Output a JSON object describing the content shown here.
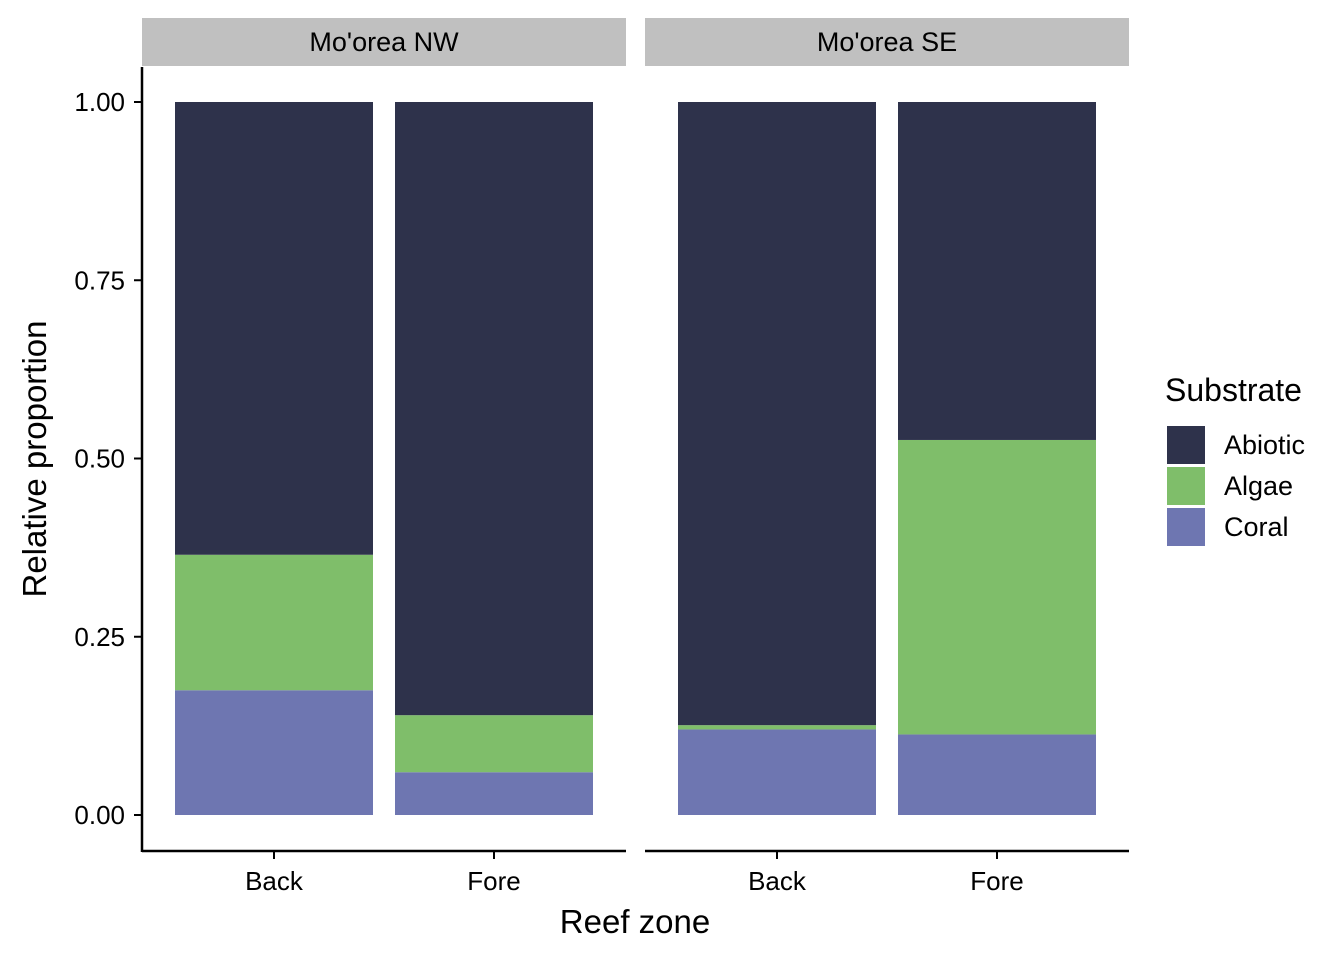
{
  "chart_data": {
    "type": "bar",
    "stacked": true,
    "facet_variable": "site",
    "facets": [
      {
        "label": "Mo'orea NW",
        "categories": [
          "Back",
          "Fore"
        ],
        "series": [
          {
            "name": "Coral",
            "values": [
              0.175,
              0.06
            ]
          },
          {
            "name": "Algae",
            "values": [
              0.19,
              0.08
            ]
          },
          {
            "name": "Abiotic",
            "values": [
              0.635,
              0.86
            ]
          }
        ]
      },
      {
        "label": "Mo'orea SE",
        "categories": [
          "Back",
          "Fore"
        ],
        "series": [
          {
            "name": "Coral",
            "values": [
              0.12,
              0.113
            ]
          },
          {
            "name": "Algae",
            "values": [
              0.006,
              0.413
            ]
          },
          {
            "name": "Abiotic",
            "values": [
              0.874,
              0.474
            ]
          }
        ]
      }
    ],
    "xlabel": "Reef zone",
    "ylabel": "Relative proportion",
    "ylim": [
      0,
      1
    ],
    "yticks": [
      "0.00",
      "0.25",
      "0.50",
      "0.75",
      "1.00"
    ],
    "ytick_values": [
      0,
      0.25,
      0.5,
      0.75,
      1.0
    ],
    "grid": false,
    "legend": {
      "title": "Substrate",
      "placement": "right",
      "entries": [
        "Abiotic",
        "Algae",
        "Coral"
      ]
    },
    "colors": {
      "Abiotic": "#2e324b",
      "Algae": "#7fbe6a",
      "Coral": "#6e76b1",
      "strip": "#c0c0c0"
    }
  }
}
